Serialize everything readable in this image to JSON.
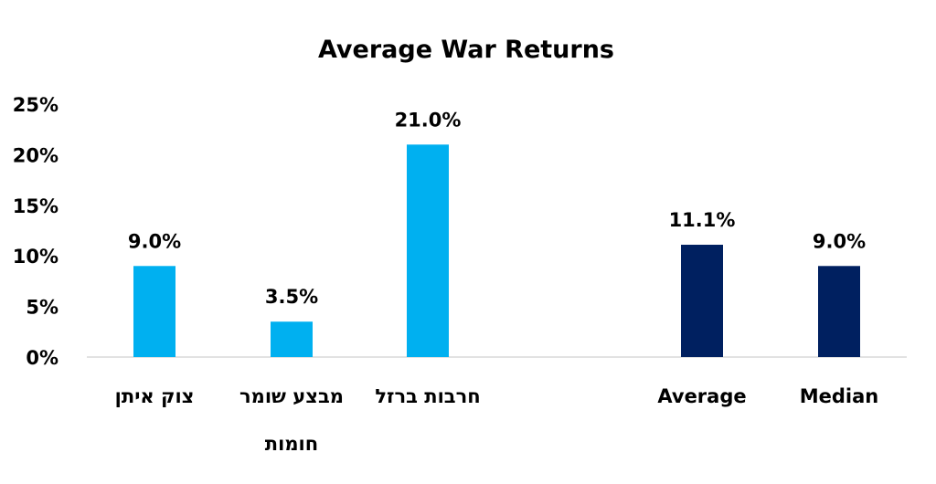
{
  "chart_data": {
    "type": "bar",
    "title": "Average War Returns",
    "categories": [
      [
        "צוק איתן"
      ],
      [
        "מבצע שומר",
        "חומות"
      ],
      [
        "חרבות ברזל"
      ],
      [
        "Average"
      ],
      [
        "Median"
      ]
    ],
    "values": [
      9.0,
      3.5,
      21.0,
      11.1,
      9.0
    ],
    "data_labels": [
      "9.0%",
      "3.5%",
      "21.0%",
      "11.1%",
      "9.0%"
    ],
    "bar_colors": [
      "#00B0F0",
      "#00B0F0",
      "#00B0F0",
      "#002060",
      "#002060"
    ],
    "yticks": [
      "0%",
      "5%",
      "10%",
      "15%",
      "20%",
      "25%"
    ],
    "ylim": [
      0,
      25
    ],
    "grid": false,
    "legend": "none",
    "xlabel": "",
    "ylabel": ""
  }
}
